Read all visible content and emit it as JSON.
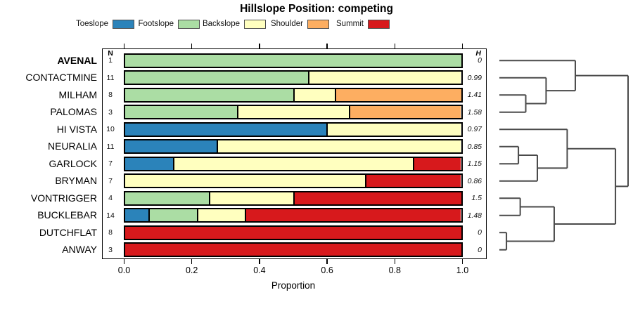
{
  "chart_data": {
    "type": "bar",
    "variant": "horizontal-stacked-proportion",
    "title": "Hillslope Position: competing",
    "xlabel": "Proportion",
    "xlim": [
      0,
      1
    ],
    "x_ticks": [
      "0.0",
      "0.2",
      "0.4",
      "0.6",
      "0.8",
      "1.0"
    ],
    "legend_position": "top",
    "legend": [
      {
        "label": "Toeslope",
        "color": "#2B83BA"
      },
      {
        "label": "Footslope",
        "color": "#ABDDA4"
      },
      {
        "label": "Backslope",
        "color": "#FFFFBF"
      },
      {
        "label": "Shoulder",
        "color": "#FDAE61"
      },
      {
        "label": "Summit",
        "color": "#D7191C"
      }
    ],
    "columns": {
      "n_header": "N",
      "h_header": "H"
    },
    "rows": [
      {
        "name": "AVENAL",
        "bold": true,
        "n": "1",
        "h": "0",
        "segments": [
          {
            "cat": "Footslope",
            "p": 1.0
          }
        ]
      },
      {
        "name": "CONTACTMINE",
        "bold": false,
        "n": "11",
        "h": "0.99",
        "segments": [
          {
            "cat": "Footslope",
            "p": 0.545
          },
          {
            "cat": "Backslope",
            "p": 0.455
          }
        ]
      },
      {
        "name": "MILHAM",
        "bold": false,
        "n": "8",
        "h": "1.41",
        "segments": [
          {
            "cat": "Footslope",
            "p": 0.5
          },
          {
            "cat": "Backslope",
            "p": 0.125
          },
          {
            "cat": "Shoulder",
            "p": 0.375
          }
        ]
      },
      {
        "name": "PALOMAS",
        "bold": false,
        "n": "3",
        "h": "1.58",
        "segments": [
          {
            "cat": "Footslope",
            "p": 0.333
          },
          {
            "cat": "Backslope",
            "p": 0.334
          },
          {
            "cat": "Shoulder",
            "p": 0.333
          }
        ]
      },
      {
        "name": "HI VISTA",
        "bold": false,
        "n": "10",
        "h": "0.97",
        "segments": [
          {
            "cat": "Toeslope",
            "p": 0.6
          },
          {
            "cat": "Backslope",
            "p": 0.4
          }
        ]
      },
      {
        "name": "NEURALIA",
        "bold": false,
        "n": "11",
        "h": "0.85",
        "segments": [
          {
            "cat": "Toeslope",
            "p": 0.273
          },
          {
            "cat": "Backslope",
            "p": 0.727
          }
        ]
      },
      {
        "name": "GARLOCK",
        "bold": false,
        "n": "7",
        "h": "1.15",
        "segments": [
          {
            "cat": "Toeslope",
            "p": 0.143
          },
          {
            "cat": "Backslope",
            "p": 0.714
          },
          {
            "cat": "Summit",
            "p": 0.143
          }
        ]
      },
      {
        "name": "BRYMAN",
        "bold": false,
        "n": "7",
        "h": "0.86",
        "segments": [
          {
            "cat": "Backslope",
            "p": 0.714
          },
          {
            "cat": "Summit",
            "p": 0.286
          }
        ]
      },
      {
        "name": "VONTRIGGER",
        "bold": false,
        "n": "4",
        "h": "1.5",
        "segments": [
          {
            "cat": "Footslope",
            "p": 0.25
          },
          {
            "cat": "Backslope",
            "p": 0.25
          },
          {
            "cat": "Summit",
            "p": 0.5
          }
        ]
      },
      {
        "name": "BUCKLEBAR",
        "bold": false,
        "n": "14",
        "h": "1.48",
        "segments": [
          {
            "cat": "Toeslope",
            "p": 0.071
          },
          {
            "cat": "Footslope",
            "p": 0.143
          },
          {
            "cat": "Backslope",
            "p": 0.143
          },
          {
            "cat": "Summit",
            "p": 0.643
          }
        ]
      },
      {
        "name": "DUTCHFLAT",
        "bold": false,
        "n": "8",
        "h": "0",
        "segments": [
          {
            "cat": "Summit",
            "p": 1.0
          }
        ]
      },
      {
        "name": "ANWAY",
        "bold": false,
        "n": "3",
        "h": "0",
        "segments": [
          {
            "cat": "Summit",
            "p": 1.0
          }
        ]
      }
    ],
    "dendrogram": {
      "orientation": "right",
      "merges": [
        {
          "id": "c-dutchflat-anway",
          "a": "DUTCHFLAT",
          "b": "ANWAY",
          "height": 0.055
        },
        {
          "id": "c-neuralia-garlock",
          "a": "NEURALIA",
          "b": "GARLOCK",
          "height": 0.148
        },
        {
          "id": "c-vontrigger-bucklebar",
          "a": "VONTRIGGER",
          "b": "BUCKLEBAR",
          "height": 0.162
        },
        {
          "id": "c-milham-palomas",
          "a": "MILHAM",
          "b": "PALOMAS",
          "height": 0.205
        },
        {
          "id": "c-neur-gar-bryman",
          "a": "c-neuralia-garlock",
          "b": "BRYMAN",
          "height": 0.295
        },
        {
          "id": "c-contact-milpal",
          "a": "CONTACTMINE",
          "b": "c-milham-palomas",
          "height": 0.363
        },
        {
          "id": "c-bottom4",
          "a": "c-vontrigger-bucklebar",
          "b": "c-dutchflat-anway",
          "height": 0.426
        },
        {
          "id": "c-hivista-group",
          "a": "HI VISTA",
          "b": "c-neur-gar-bryman",
          "height": 0.527
        },
        {
          "id": "c-avenal-group",
          "a": "AVENAL",
          "b": "c-contact-milpal",
          "height": 0.59
        },
        {
          "id": "c-mid-bottom",
          "a": "c-hivista-group",
          "b": "c-bottom4",
          "height": 0.902
        },
        {
          "id": "root",
          "a": "c-avenal-group",
          "b": "c-mid-bottom",
          "height": 1.0
        }
      ]
    },
    "axis_color": "#000000",
    "dendrogram_line_color": "#4a4a4a"
  }
}
